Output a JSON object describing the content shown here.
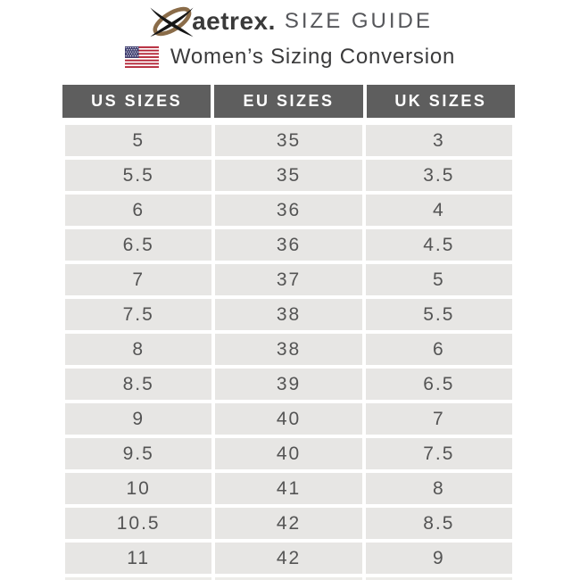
{
  "page": {
    "background": "#ffffff"
  },
  "brand_header": {
    "logo_icon": "aetrex-swoosh-logo",
    "wordmark": "aetrex.",
    "title": "SIZE GUIDE"
  },
  "subtitle": {
    "flag_icon": "us-flag",
    "text": "Women’s Sizing Conversion"
  },
  "table": {
    "columns": [
      "US SIZES",
      "EU SIZES",
      "UK SIZES"
    ],
    "rows": [
      [
        "5",
        "35",
        "3"
      ],
      [
        "5.5",
        "35",
        "3.5"
      ],
      [
        "6",
        "36",
        "4"
      ],
      [
        "6.5",
        "36",
        "4.5"
      ],
      [
        "7",
        "37",
        "5"
      ],
      [
        "7.5",
        "38",
        "5.5"
      ],
      [
        "8",
        "38",
        "6"
      ],
      [
        "8.5",
        "39",
        "6.5"
      ],
      [
        "9",
        "40",
        "7"
      ],
      [
        "9.5",
        "40",
        "7.5"
      ],
      [
        "10",
        "41",
        "8"
      ],
      [
        "10.5",
        "42",
        "8.5"
      ],
      [
        "11",
        "42",
        "9"
      ]
    ]
  },
  "colors": {
    "logo_ellipse": "#8a6c49",
    "logo_x": "#161616",
    "wordmark_text": "#3a3a3a",
    "title_text": "#55565a",
    "subtitle_text": "#3b3b3c",
    "flag_red": "#b22234",
    "flag_blue": "#3c3b6e",
    "header_bg": "#5e5e5e",
    "header_text": "#ffffff",
    "row_bg": "#e7e6e4",
    "row_text": "#545454"
  },
  "chart_data": {
    "type": "table",
    "title": "aetrex. SIZE GUIDE",
    "subtitle": "Women’s Sizing Conversion",
    "columns": [
      "US SIZES",
      "EU SIZES",
      "UK SIZES"
    ],
    "rows": [
      [
        "5",
        "35",
        "3"
      ],
      [
        "5.5",
        "35",
        "3.5"
      ],
      [
        "6",
        "36",
        "4"
      ],
      [
        "6.5",
        "36",
        "4.5"
      ],
      [
        "7",
        "37",
        "5"
      ],
      [
        "7.5",
        "38",
        "5.5"
      ],
      [
        "8",
        "38",
        "6"
      ],
      [
        "8.5",
        "39",
        "6.5"
      ],
      [
        "9",
        "40",
        "7"
      ],
      [
        "9.5",
        "40",
        "7.5"
      ],
      [
        "10",
        "41",
        "8"
      ],
      [
        "10.5",
        "42",
        "8.5"
      ],
      [
        "11",
        "42",
        "9"
      ]
    ],
    "layout": {
      "header_style": "dark-gray-band",
      "row_style": "light-gray-band",
      "grid": "white-gaps"
    }
  }
}
